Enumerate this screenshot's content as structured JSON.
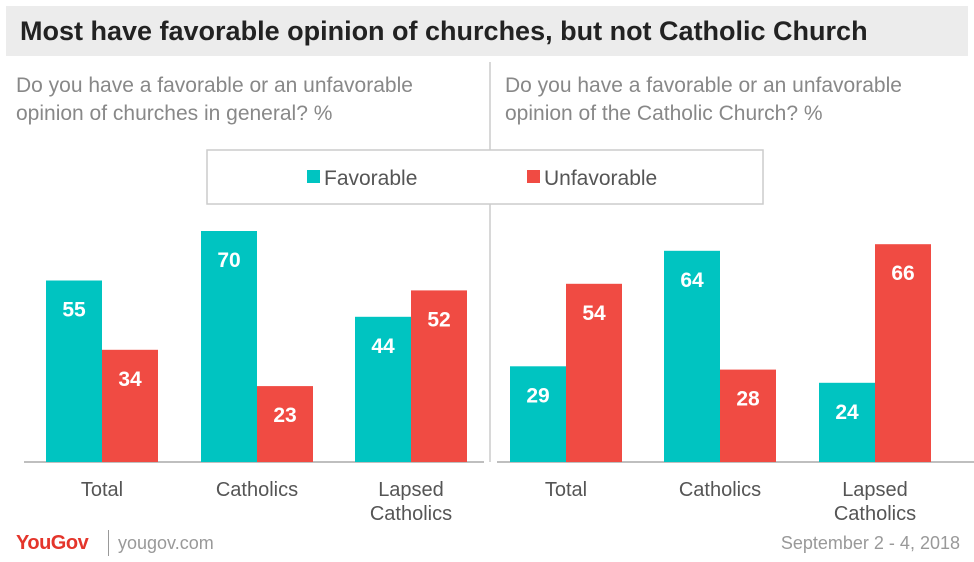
{
  "title": "Most have favorable opinion of churches, but not Catholic Church",
  "colors": {
    "favorable": "#00c4c1",
    "unfavorable": "#f04b43",
    "title_bg": "#ececec",
    "muted_text": "#888888",
    "axis": "#aaaaaa"
  },
  "legend": {
    "favorable": "Favorable",
    "unfavorable": "Unfavorable"
  },
  "chart_data": [
    {
      "type": "bar",
      "title": "Do you have a favorable or an unfavorable opinion of churches in general? %",
      "categories": [
        [
          "Total"
        ],
        [
          "Catholics"
        ],
        [
          "Lapsed",
          "Catholics"
        ]
      ],
      "series": [
        {
          "name": "Favorable",
          "values": [
            55,
            70,
            44
          ]
        },
        {
          "name": "Unfavorable",
          "values": [
            34,
            23,
            52
          ]
        }
      ],
      "ylim": [
        0,
        70
      ],
      "legend_position": "top-center",
      "grid": false
    },
    {
      "type": "bar",
      "title": "Do you have a favorable or an unfavorable opinion of the Catholic Church? %",
      "categories": [
        [
          "Total"
        ],
        [
          "Catholics"
        ],
        [
          "Lapsed",
          "Catholics"
        ]
      ],
      "series": [
        {
          "name": "Favorable",
          "values": [
            29,
            64,
            24
          ]
        },
        {
          "name": "Unfavorable",
          "values": [
            54,
            28,
            66
          ]
        }
      ],
      "ylim": [
        0,
        70
      ],
      "grid": false
    }
  ],
  "footer": {
    "logo": "YouGov",
    "site": "yougov.com",
    "date": "September 2 - 4, 2018"
  }
}
